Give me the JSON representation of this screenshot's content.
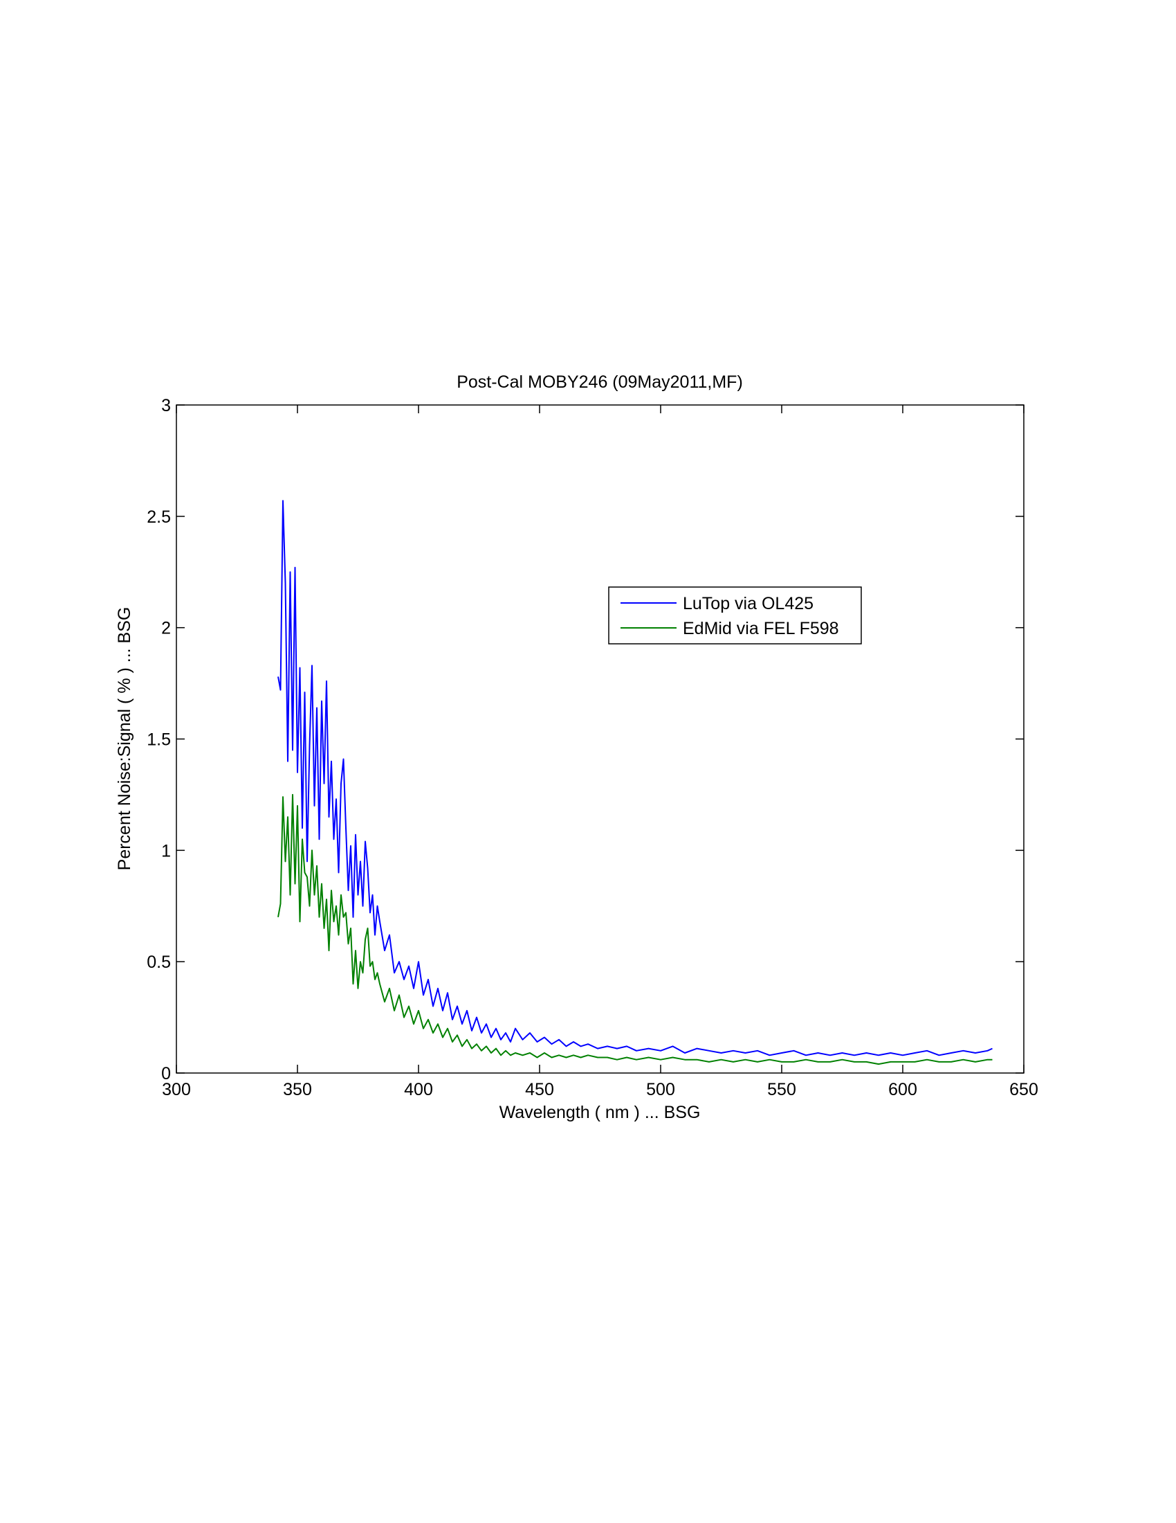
{
  "chart_data": {
    "type": "line",
    "title": "Post-Cal MOBY246  (09May2011,MF)",
    "xlabel": "Wavelength  ( nm )  ...  BSG",
    "ylabel": "Percent Noise:Signal  ( % )  ...  BSG",
    "xlim": [
      300,
      650
    ],
    "ylim": [
      0,
      3
    ],
    "xticks": [
      300,
      350,
      400,
      450,
      500,
      550,
      600,
      650
    ],
    "yticks": [
      0,
      0.5,
      1,
      1.5,
      2,
      2.5,
      3
    ],
    "xtick_labels": [
      "300",
      "350",
      "400",
      "450",
      "500",
      "550",
      "600",
      "650"
    ],
    "ytick_labels": [
      "0",
      "0.5",
      "1",
      "1.5",
      "2",
      "2.5",
      "3"
    ],
    "grid": false,
    "legend_position": "upper-right-inside",
    "series": [
      {
        "name": "LuTop via OL425",
        "color": "#0000ff",
        "x": [
          342,
          343,
          344,
          345,
          346,
          347,
          348,
          349,
          350,
          351,
          352,
          353,
          354,
          355,
          356,
          357,
          358,
          359,
          360,
          361,
          362,
          363,
          364,
          365,
          366,
          367,
          368,
          369,
          370,
          371,
          372,
          373,
          374,
          375,
          376,
          377,
          378,
          379,
          380,
          381,
          382,
          383,
          384,
          386,
          388,
          390,
          392,
          394,
          396,
          398,
          400,
          402,
          404,
          406,
          408,
          410,
          412,
          414,
          416,
          418,
          420,
          422,
          424,
          426,
          428,
          430,
          432,
          434,
          436,
          438,
          440,
          443,
          446,
          449,
          452,
          455,
          458,
          461,
          464,
          467,
          470,
          474,
          478,
          482,
          486,
          490,
          495,
          500,
          505,
          510,
          515,
          520,
          525,
          530,
          535,
          540,
          545,
          550,
          555,
          560,
          565,
          570,
          575,
          580,
          585,
          590,
          595,
          600,
          605,
          610,
          615,
          620,
          625,
          630,
          635,
          637
        ],
        "y": [
          1.78,
          1.72,
          2.57,
          2.2,
          1.4,
          2.25,
          1.45,
          2.27,
          1.35,
          1.82,
          1.1,
          1.71,
          0.95,
          1.47,
          1.83,
          1.2,
          1.64,
          1.05,
          1.67,
          1.3,
          1.76,
          1.15,
          1.4,
          1.05,
          1.23,
          0.9,
          1.3,
          1.41,
          1.1,
          0.82,
          1.02,
          0.7,
          1.07,
          0.8,
          0.95,
          0.75,
          1.04,
          0.92,
          0.72,
          0.8,
          0.62,
          0.75,
          0.68,
          0.55,
          0.62,
          0.45,
          0.5,
          0.42,
          0.48,
          0.38,
          0.5,
          0.35,
          0.42,
          0.3,
          0.38,
          0.28,
          0.36,
          0.24,
          0.3,
          0.22,
          0.28,
          0.19,
          0.25,
          0.18,
          0.22,
          0.16,
          0.2,
          0.15,
          0.18,
          0.14,
          0.2,
          0.15,
          0.18,
          0.14,
          0.16,
          0.13,
          0.15,
          0.12,
          0.14,
          0.12,
          0.13,
          0.11,
          0.12,
          0.11,
          0.12,
          0.1,
          0.11,
          0.1,
          0.12,
          0.09,
          0.11,
          0.1,
          0.09,
          0.1,
          0.09,
          0.1,
          0.08,
          0.09,
          0.1,
          0.08,
          0.09,
          0.08,
          0.09,
          0.08,
          0.09,
          0.08,
          0.09,
          0.08,
          0.09,
          0.1,
          0.08,
          0.09,
          0.1,
          0.09,
          0.1,
          0.11
        ]
      },
      {
        "name": "EdMid via FEL F598",
        "color": "#008000",
        "x": [
          342,
          343,
          344,
          345,
          346,
          347,
          348,
          349,
          350,
          351,
          352,
          353,
          354,
          355,
          356,
          357,
          358,
          359,
          360,
          361,
          362,
          363,
          364,
          365,
          366,
          367,
          368,
          369,
          370,
          371,
          372,
          373,
          374,
          375,
          376,
          377,
          378,
          379,
          380,
          381,
          382,
          383,
          384,
          386,
          388,
          390,
          392,
          394,
          396,
          398,
          400,
          402,
          404,
          406,
          408,
          410,
          412,
          414,
          416,
          418,
          420,
          422,
          424,
          426,
          428,
          430,
          432,
          434,
          436,
          438,
          440,
          443,
          446,
          449,
          452,
          455,
          458,
          461,
          464,
          467,
          470,
          474,
          478,
          482,
          486,
          490,
          495,
          500,
          505,
          510,
          515,
          520,
          525,
          530,
          535,
          540,
          545,
          550,
          555,
          560,
          565,
          570,
          575,
          580,
          585,
          590,
          595,
          600,
          605,
          610,
          615,
          620,
          625,
          630,
          635,
          637
        ],
        "y": [
          0.7,
          0.76,
          1.24,
          0.95,
          1.15,
          0.8,
          1.25,
          0.85,
          1.2,
          0.68,
          1.05,
          0.9,
          0.88,
          0.75,
          1.0,
          0.8,
          0.93,
          0.7,
          0.85,
          0.65,
          0.78,
          0.55,
          0.82,
          0.68,
          0.75,
          0.62,
          0.8,
          0.7,
          0.72,
          0.58,
          0.65,
          0.4,
          0.55,
          0.38,
          0.5,
          0.45,
          0.6,
          0.65,
          0.48,
          0.5,
          0.42,
          0.45,
          0.4,
          0.32,
          0.38,
          0.28,
          0.35,
          0.25,
          0.3,
          0.22,
          0.28,
          0.2,
          0.24,
          0.18,
          0.22,
          0.16,
          0.2,
          0.14,
          0.17,
          0.12,
          0.15,
          0.11,
          0.13,
          0.1,
          0.12,
          0.09,
          0.11,
          0.08,
          0.1,
          0.08,
          0.09,
          0.08,
          0.09,
          0.07,
          0.09,
          0.07,
          0.08,
          0.07,
          0.08,
          0.07,
          0.08,
          0.07,
          0.07,
          0.06,
          0.07,
          0.06,
          0.07,
          0.06,
          0.07,
          0.06,
          0.06,
          0.05,
          0.06,
          0.05,
          0.06,
          0.05,
          0.06,
          0.05,
          0.05,
          0.06,
          0.05,
          0.05,
          0.06,
          0.05,
          0.05,
          0.04,
          0.05,
          0.05,
          0.05,
          0.06,
          0.05,
          0.05,
          0.06,
          0.05,
          0.06,
          0.06
        ]
      }
    ]
  }
}
